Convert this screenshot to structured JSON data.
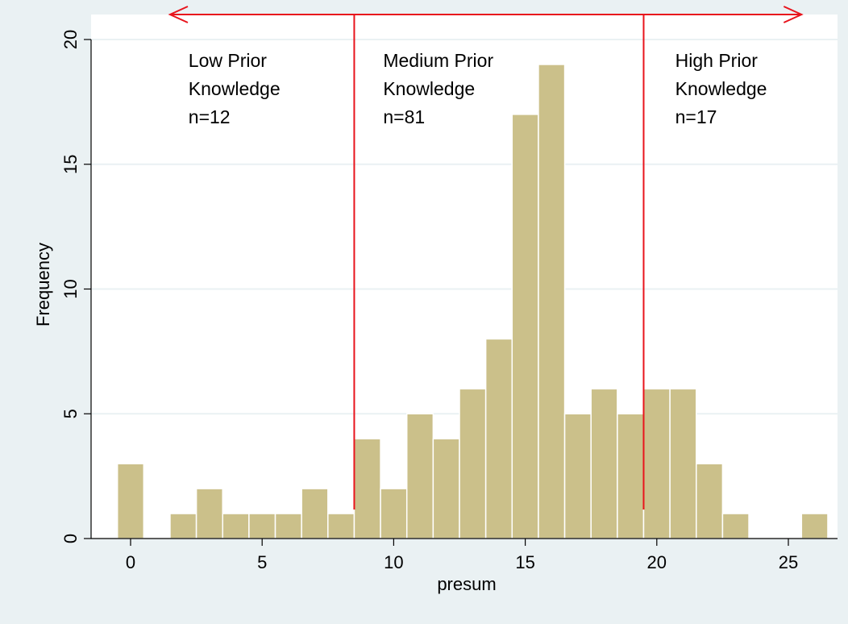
{
  "chart_data": {
    "type": "bar",
    "subtype": "histogram",
    "xlabel": "presum",
    "ylabel": "Frequency",
    "xlim": [
      -1,
      27
    ],
    "ylim": [
      0,
      20
    ],
    "x_ticks": [
      0,
      5,
      10,
      15,
      20,
      25
    ],
    "y_ticks": [
      0,
      5,
      10,
      15,
      20
    ],
    "grid": "horizontal",
    "bin_width": 1,
    "bars": [
      {
        "x": 0,
        "value": 3
      },
      {
        "x": 2,
        "value": 1
      },
      {
        "x": 3,
        "value": 2
      },
      {
        "x": 4,
        "value": 1
      },
      {
        "x": 5,
        "value": 1
      },
      {
        "x": 6,
        "value": 1
      },
      {
        "x": 7,
        "value": 2
      },
      {
        "x": 8,
        "value": 1
      },
      {
        "x": 9,
        "value": 4
      },
      {
        "x": 10,
        "value": 2
      },
      {
        "x": 11,
        "value": 5
      },
      {
        "x": 12,
        "value": 4
      },
      {
        "x": 13,
        "value": 6
      },
      {
        "x": 14,
        "value": 8
      },
      {
        "x": 15,
        "value": 17
      },
      {
        "x": 16,
        "value": 19
      },
      {
        "x": 17,
        "value": 5
      },
      {
        "x": 18,
        "value": 6
      },
      {
        "x": 19,
        "value": 5
      },
      {
        "x": 20,
        "value": 6
      },
      {
        "x": 21,
        "value": 6
      },
      {
        "x": 22,
        "value": 3
      },
      {
        "x": 23,
        "value": 1
      },
      {
        "x": 26,
        "value": 1
      }
    ],
    "cutoffs": [
      8.5,
      19.5
    ],
    "range_arrow": [
      1.5,
      25.5
    ],
    "annotations": [
      {
        "lines": [
          "Low Prior",
          "Knowledge",
          "n=12"
        ],
        "x": 2.2
      },
      {
        "lines": [
          "Medium Prior",
          "Knowledge",
          "n=81"
        ],
        "x": 9.6
      },
      {
        "lines": [
          "High Prior",
          "Knowledge",
          "n=17"
        ],
        "x": 20.7
      }
    ],
    "colors": {
      "bar_fill": "#cbc08a",
      "bar_stroke": "#ffffff",
      "annotation": "#e8141c",
      "background": "#eaf1f3",
      "plot_bg": "#ffffff",
      "grid": "#eaf1f3"
    }
  }
}
